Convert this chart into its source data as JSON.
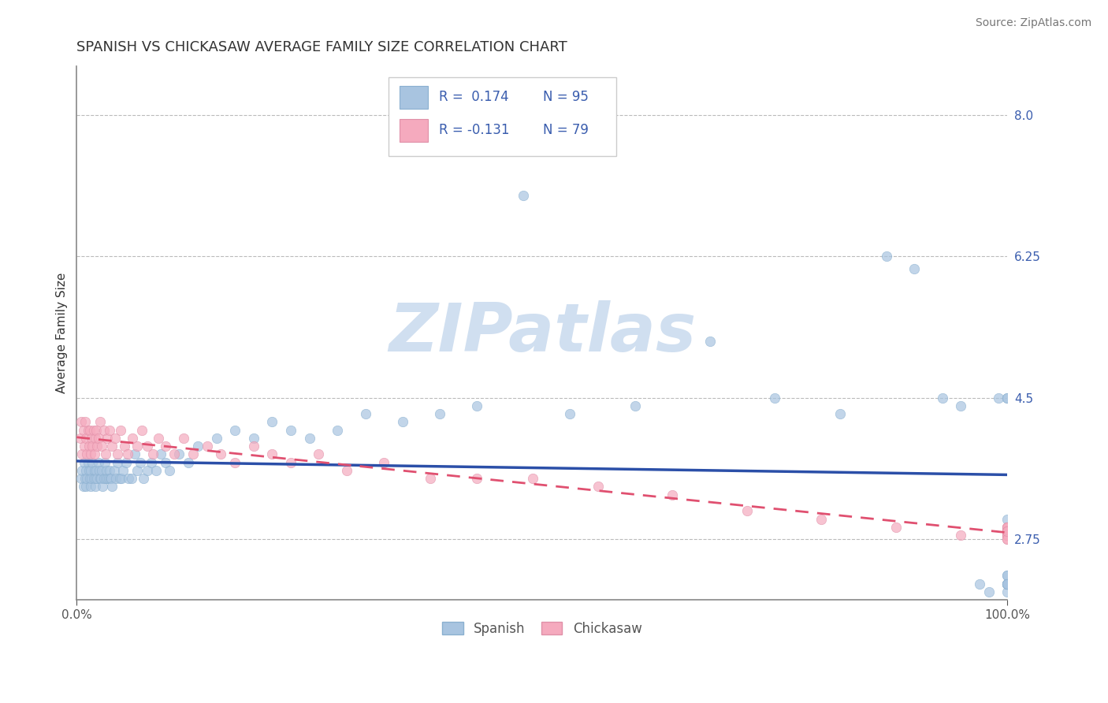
{
  "title": "SPANISH VS CHICKASAW AVERAGE FAMILY SIZE CORRELATION CHART",
  "source": "Source: ZipAtlas.com",
  "ylabel": "Average Family Size",
  "xlim": [
    0,
    1
  ],
  "ylim": [
    2.0,
    8.6
  ],
  "yticks": [
    2.75,
    4.5,
    6.25,
    8.0
  ],
  "xticks": [
    0.0,
    1.0
  ],
  "xticklabels": [
    "0.0%",
    "100.0%"
  ],
  "title_color": "#333333",
  "title_fontsize": 13,
  "source_color": "#777777",
  "source_fontsize": 10,
  "ylabel_color": "#333333",
  "ylabel_fontsize": 11,
  "ytick_color": "#3a5dae",
  "xtick_color": "#555555",
  "grid_color": "#bbbbbb",
  "background_color": "#ffffff",
  "watermark_text": "ZIPatlas",
  "watermark_color": "#d0dff0",
  "spanish_color": "#a8c4e0",
  "chickasaw_color": "#f5aabe",
  "spanish_line_color": "#2b4fa8",
  "chickasaw_line_color": "#e05070",
  "legend_box_color": "#cccccc",
  "legend_text_color": "#3a5dae",
  "sp_x": [
    0.005,
    0.006,
    0.007,
    0.008,
    0.009,
    0.01,
    0.01,
    0.011,
    0.012,
    0.013,
    0.014,
    0.015,
    0.015,
    0.016,
    0.017,
    0.018,
    0.019,
    0.02,
    0.02,
    0.021,
    0.022,
    0.023,
    0.024,
    0.025,
    0.026,
    0.027,
    0.028,
    0.029,
    0.03,
    0.031,
    0.032,
    0.033,
    0.034,
    0.035,
    0.036,
    0.037,
    0.038,
    0.04,
    0.042,
    0.044,
    0.046,
    0.048,
    0.05,
    0.053,
    0.056,
    0.059,
    0.062,
    0.065,
    0.068,
    0.072,
    0.076,
    0.08,
    0.085,
    0.09,
    0.095,
    0.1,
    0.11,
    0.12,
    0.13,
    0.15,
    0.17,
    0.19,
    0.21,
    0.23,
    0.25,
    0.28,
    0.31,
    0.35,
    0.39,
    0.43,
    0.48,
    0.53,
    0.6,
    0.68,
    0.75,
    0.82,
    0.87,
    0.9,
    0.93,
    0.95,
    0.97,
    0.98,
    0.99,
    1.0,
    1.0,
    1.0,
    1.0,
    1.0,
    1.0,
    1.0,
    1.0,
    1.0,
    1.0,
    1.0,
    1.0
  ],
  "sp_y": [
    3.5,
    3.6,
    3.4,
    3.7,
    3.5,
    3.6,
    3.4,
    3.5,
    3.7,
    3.6,
    3.5,
    3.4,
    3.6,
    3.5,
    3.7,
    3.5,
    3.6,
    3.4,
    3.5,
    3.6,
    3.5,
    3.7,
    3.6,
    3.5,
    3.5,
    3.6,
    3.4,
    3.5,
    3.7,
    3.5,
    3.6,
    3.5,
    3.5,
    3.6,
    3.5,
    3.5,
    3.4,
    3.6,
    3.5,
    3.7,
    3.5,
    3.5,
    3.6,
    3.7,
    3.5,
    3.5,
    3.8,
    3.6,
    3.7,
    3.5,
    3.6,
    3.7,
    3.6,
    3.8,
    3.7,
    3.6,
    3.8,
    3.7,
    3.9,
    4.0,
    4.1,
    4.0,
    4.2,
    4.1,
    4.0,
    4.1,
    4.3,
    4.2,
    4.3,
    4.4,
    7.0,
    4.3,
    4.4,
    5.2,
    4.5,
    4.3,
    6.25,
    6.1,
    4.5,
    4.4,
    2.2,
    2.1,
    4.5,
    4.5,
    3.0,
    2.2,
    2.2,
    2.1,
    2.2,
    2.3,
    2.2,
    4.5,
    2.3,
    2.2,
    2.2
  ],
  "ck_x": [
    0.004,
    0.005,
    0.006,
    0.007,
    0.008,
    0.009,
    0.01,
    0.011,
    0.012,
    0.013,
    0.014,
    0.015,
    0.016,
    0.017,
    0.018,
    0.019,
    0.02,
    0.021,
    0.022,
    0.023,
    0.025,
    0.027,
    0.029,
    0.031,
    0.033,
    0.035,
    0.038,
    0.041,
    0.044,
    0.047,
    0.051,
    0.055,
    0.06,
    0.065,
    0.07,
    0.076,
    0.082,
    0.088,
    0.095,
    0.105,
    0.115,
    0.125,
    0.14,
    0.155,
    0.17,
    0.19,
    0.21,
    0.23,
    0.26,
    0.29,
    0.33,
    0.38,
    0.43,
    0.49,
    0.56,
    0.64,
    0.72,
    0.8,
    0.88,
    0.95,
    1.0,
    1.0,
    1.0,
    1.0,
    1.0,
    1.0,
    1.0,
    1.0,
    1.0,
    1.0,
    1.0,
    1.0,
    1.0,
    1.0,
    1.0,
    1.0,
    1.0,
    1.0,
    1.0
  ],
  "ck_y": [
    4.0,
    4.2,
    3.8,
    4.1,
    3.9,
    4.2,
    4.0,
    3.8,
    4.1,
    3.9,
    4.1,
    3.8,
    4.0,
    3.9,
    4.1,
    3.8,
    4.0,
    4.1,
    3.9,
    4.0,
    4.2,
    3.9,
    4.1,
    3.8,
    4.0,
    4.1,
    3.9,
    4.0,
    3.8,
    4.1,
    3.9,
    3.8,
    4.0,
    3.9,
    4.1,
    3.9,
    3.8,
    4.0,
    3.9,
    3.8,
    4.0,
    3.8,
    3.9,
    3.8,
    3.7,
    3.9,
    3.8,
    3.7,
    3.8,
    3.6,
    3.7,
    3.5,
    3.5,
    3.5,
    3.4,
    3.3,
    3.1,
    3.0,
    2.9,
    2.8,
    2.85,
    2.9,
    2.85,
    2.8,
    2.85,
    2.9,
    2.85,
    2.8,
    2.85,
    2.9,
    2.85,
    2.8,
    2.75,
    2.85,
    2.9,
    2.8,
    2.85,
    2.75,
    2.85
  ]
}
